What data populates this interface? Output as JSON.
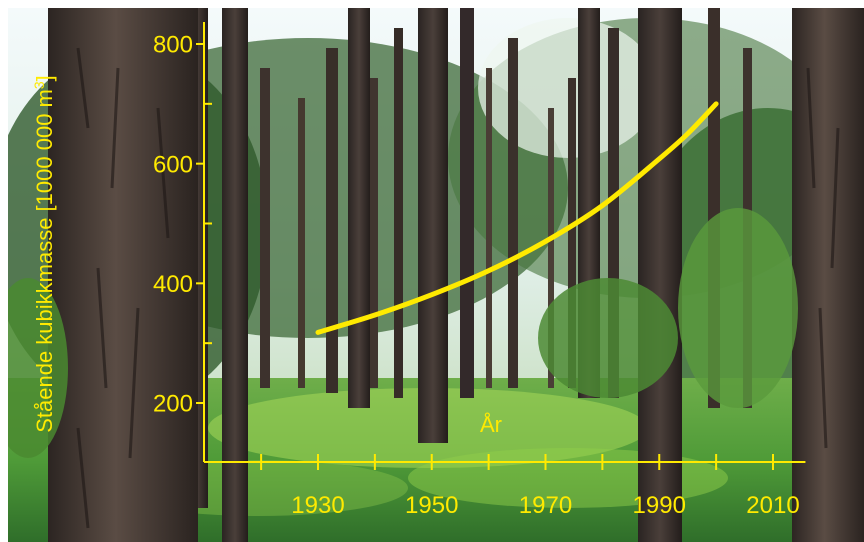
{
  "colors": {
    "chart_yellow": "#ffea00",
    "sky": "#eef6f8",
    "grass": "#4fa63a",
    "grass_light": "#9fd24a",
    "foliage": "#2f5a2c",
    "trunk_dark": "#3a2f2a",
    "trunk_mid": "#5a4a40"
  },
  "background": {
    "icon": "forest-photo"
  },
  "chart_data": {
    "type": "line",
    "xlabel": "År",
    "ylabel": "Stående kubikkmasse [1000 000 m³]",
    "xlim": [
      1910,
      2015
    ],
    "ylim": [
      110,
      830
    ],
    "x_ticks": [
      1930,
      1950,
      1970,
      1990,
      2010
    ],
    "y_ticks": [
      200,
      400,
      600,
      800
    ],
    "grid": false,
    "series": [
      {
        "x": [
          1930,
          1940,
          1950,
          1960,
          1970,
          1980,
          1990,
          1995,
          2000
        ],
        "values": [
          318,
          347,
          381,
          421,
          470,
          530,
          608,
          650,
          700
        ]
      }
    ]
  }
}
